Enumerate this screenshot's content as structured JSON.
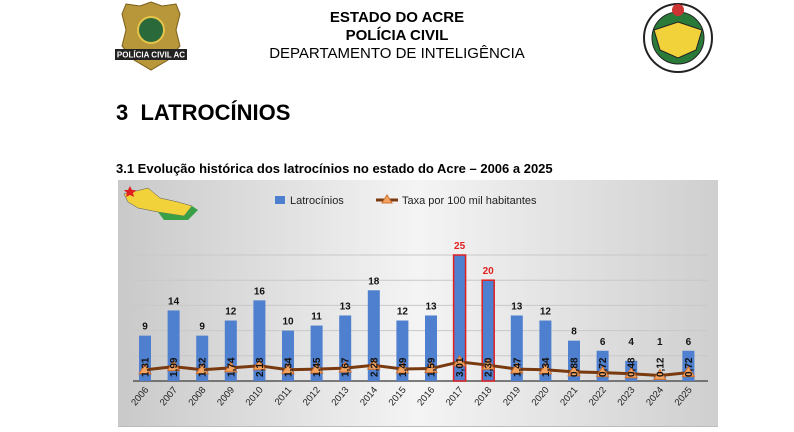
{
  "header": {
    "line1": "ESTADO DO ACRE",
    "line2": "POLÍCIA CIVIL",
    "line3": "DEPARTAMENTO DE INTELIGÊNCIA",
    "left_logo_text": "POLÍCIA CIVIL AC",
    "right_logo": "acre-coat-of-arms"
  },
  "section": {
    "number": "3",
    "title": "LATROCÍNIOS"
  },
  "subsection": {
    "title": "3.1 Evolução histórica dos latrocínios no estado do Acre – 2006 a 2025"
  },
  "chart_data": {
    "type": "bar",
    "title": "",
    "categories": [
      "2006",
      "2007",
      "2008",
      "2009",
      "2010",
      "2011",
      "2012",
      "2013",
      "2014",
      "2015",
      "2016",
      "2017",
      "2018",
      "2019",
      "2020",
      "2021",
      "2022",
      "2023",
      "2024",
      "2025"
    ],
    "series": [
      {
        "name": "Latrocínios",
        "type": "bar",
        "color": "#4f7fcf",
        "values": [
          9,
          14,
          9,
          12,
          16,
          10,
          11,
          13,
          18,
          12,
          13,
          25,
          20,
          13,
          12,
          8,
          6,
          4,
          1,
          6
        ],
        "highlighted": [
          "2017",
          "2018"
        ],
        "highlight_color": "#e02020"
      },
      {
        "name": "Taxa por 100 mil habitantes",
        "type": "line",
        "color": "#7a3a10",
        "marker_color": "#f4a460",
        "values": [
          "1,31",
          "1,99",
          "1,32",
          "1,74",
          "2,18",
          "1,34",
          "1,45",
          "1,67",
          "2,28",
          "1,49",
          "1,59",
          "3,01",
          "2,30",
          "1,47",
          "1,34",
          "0,88",
          "0,72",
          "0,48",
          "0,12",
          "0,72"
        ]
      }
    ],
    "ylim": [
      0,
      25
    ],
    "grid": true,
    "legend": "top"
  }
}
